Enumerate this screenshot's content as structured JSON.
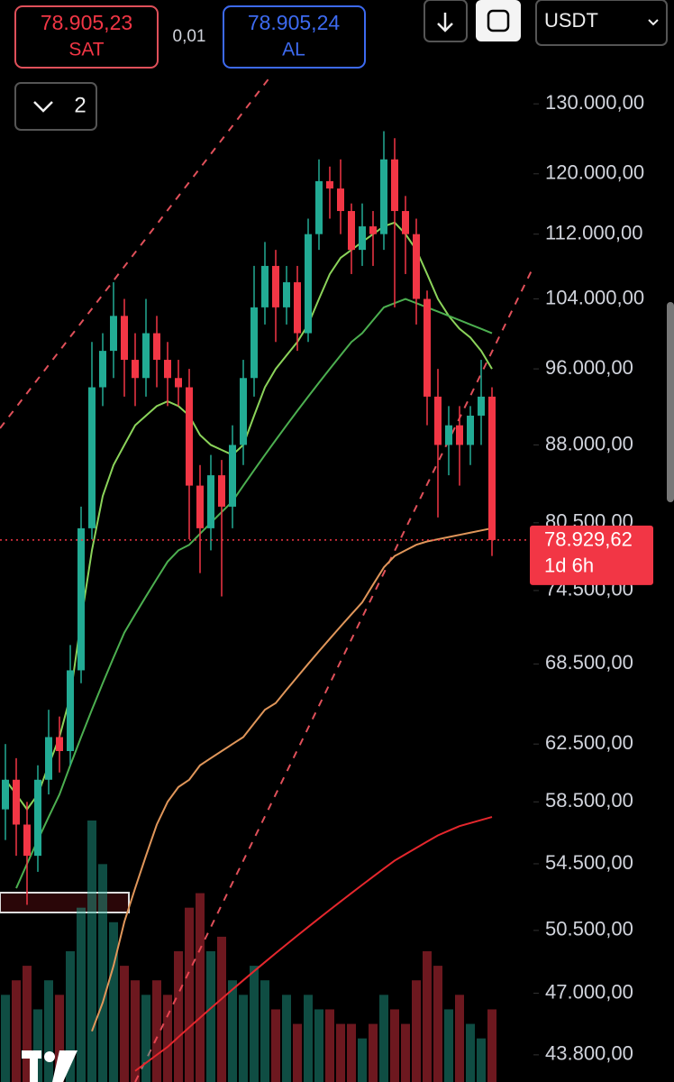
{
  "header": {
    "sell_price": "78.905,23",
    "sell_label": "SAT",
    "spread": "0,01",
    "buy_price": "78.905,24",
    "buy_label": "AL",
    "currency": "USDT",
    "indicators_count": "2"
  },
  "chart_data": {
    "type": "candlestick",
    "log_scale": true,
    "ylim": [
      42460,
      146400
    ],
    "yticks": [
      {
        "value": 130000,
        "label": "130.000,00"
      },
      {
        "value": 120000,
        "label": "120.000,00"
      },
      {
        "value": 112000,
        "label": "112.000,00"
      },
      {
        "value": 104000,
        "label": "104.000,00"
      },
      {
        "value": 96000,
        "label": "96.000,00"
      },
      {
        "value": 88000,
        "label": "88.000,00"
      },
      {
        "value": 80500,
        "label": "80.500,00"
      },
      {
        "value": 74500,
        "label": "74.500,00"
      },
      {
        "value": 68500,
        "label": "68.500,00"
      },
      {
        "value": 62500,
        "label": "62.500,00"
      },
      {
        "value": 58500,
        "label": "58.500,00"
      },
      {
        "value": 54500,
        "label": "54.500,00"
      },
      {
        "value": 50500,
        "label": "50.500,00"
      },
      {
        "value": 47000,
        "label": "47.000,00"
      },
      {
        "value": 43800,
        "label": "43.800,00"
      }
    ],
    "up_color": "#22ab94",
    "down_color": "#f23645",
    "open": [
      58000,
      60000,
      57000,
      55000,
      60000,
      63000,
      62000,
      68000,
      80000,
      94000,
      98000,
      102000,
      97000,
      95000,
      100000,
      97000,
      95000,
      94000,
      84000,
      80000,
      85000,
      82000,
      88000,
      95000,
      103000,
      108000,
      103000,
      106000,
      100000,
      112000,
      119000,
      118000,
      115000,
      110000,
      113000,
      112000,
      122000,
      115000,
      112000,
      104000,
      93000,
      88000,
      90000,
      88000,
      91000,
      93000
    ],
    "high": [
      62500,
      61500,
      58500,
      61000,
      65000,
      64500,
      70000,
      82000,
      99000,
      100000,
      106000,
      104000,
      100000,
      104000,
      102000,
      99000,
      97000,
      96000,
      86000,
      87000,
      86500,
      90000,
      97000,
      108000,
      111000,
      110000,
      108000,
      108000,
      114000,
      122000,
      121000,
      122000,
      116000,
      116000,
      115000,
      126000,
      125000,
      117000,
      114000,
      105000,
      96000,
      92000,
      92000,
      92000,
      97000,
      94000
    ],
    "low": [
      56000,
      55000,
      52000,
      54000,
      59000,
      60500,
      61000,
      67000,
      79000,
      92000,
      95000,
      93000,
      92000,
      93000,
      94000,
      92000,
      92000,
      79000,
      76000,
      78000,
      74000,
      80000,
      86000,
      93000,
      101000,
      99000,
      101000,
      98000,
      99000,
      110000,
      114000,
      112000,
      107000,
      108000,
      108000,
      110000,
      103000,
      107000,
      101000,
      90000,
      81000,
      85000,
      84000,
      86000,
      88000,
      77500
    ],
    "close": [
      60000,
      57000,
      55000,
      60000,
      63000,
      62000,
      68000,
      80000,
      94000,
      98000,
      102000,
      97000,
      95000,
      100000,
      97000,
      95000,
      94000,
      84000,
      80000,
      85000,
      82000,
      88000,
      95000,
      103000,
      108000,
      103000,
      106000,
      100000,
      112000,
      119000,
      118000,
      115000,
      110000,
      113000,
      112000,
      122000,
      115000,
      112000,
      104000,
      93000,
      88000,
      90000,
      88000,
      91000,
      93000,
      78929.62
    ],
    "volume": [
      30,
      35,
      40,
      25,
      35,
      30,
      45,
      60,
      90,
      75,
      55,
      40,
      35,
      30,
      35,
      30,
      45,
      60,
      65,
      45,
      50,
      35,
      30,
      40,
      35,
      25,
      30,
      20,
      30,
      25,
      25,
      20,
      20,
      15,
      20,
      30,
      25,
      20,
      35,
      45,
      40,
      25,
      30,
      20,
      15,
      25
    ],
    "series": [
      {
        "color": "#8bd35a",
        "values": [
          60000,
          59000,
          58000,
          59000,
          61000,
          63000,
          66000,
          72000,
          78000,
          83000,
          86000,
          88000,
          90000,
          91000,
          92000,
          92500,
          92000,
          91000,
          89000,
          88000,
          87500,
          87000,
          88000,
          91000,
          94000,
          96000,
          97500,
          99000,
          101000,
          104000,
          107000,
          109000,
          110000,
          111000,
          112000,
          113000,
          113500,
          112000,
          110000,
          107000,
          104000,
          102000,
          100500,
          99500,
          98000,
          96000
        ]
      },
      {
        "color": "#4caf50",
        "values": [
          null,
          53000,
          54500,
          56000,
          57500,
          59000,
          61000,
          63000,
          65000,
          67000,
          69000,
          71000,
          72500,
          74000,
          75500,
          77000,
          78000,
          78500,
          79500,
          80500,
          81500,
          82500,
          84000,
          85500,
          87000,
          88500,
          90000,
          91500,
          93000,
          94500,
          96000,
          97500,
          99000,
          100000,
          101500,
          103000,
          103500,
          104000,
          103500,
          103000,
          102500,
          102000,
          101500,
          101000,
          100500,
          100000
        ]
      },
      {
        "color": "#e0965a",
        "values": [
          null,
          null,
          null,
          null,
          null,
          null,
          null,
          null,
          45000,
          46500,
          48500,
          51000,
          53000,
          55000,
          57000,
          58500,
          59500,
          60000,
          61000,
          61500,
          62000,
          62500,
          63000,
          64000,
          65000,
          65500,
          66500,
          67500,
          68500,
          69500,
          70500,
          71500,
          72500,
          73500,
          75000,
          76500,
          77500,
          78000,
          78500,
          78800,
          79000,
          79200,
          79400,
          79600,
          79800,
          80000
        ]
      },
      {
        "color": "#e5272d",
        "values": [
          null,
          null,
          null,
          null,
          null,
          null,
          null,
          null,
          null,
          null,
          null,
          null,
          43000,
          43400,
          43800,
          44200,
          44700,
          45200,
          45700,
          46200,
          46700,
          47200,
          47700,
          48200,
          48700,
          49200,
          49700,
          50200,
          50700,
          51200,
          51700,
          52200,
          52700,
          53200,
          53700,
          54200,
          54700,
          55100,
          55500,
          55900,
          56300,
          56600,
          56900,
          57100,
          57300,
          57500
        ]
      }
    ],
    "last_price": {
      "value": 78929.62,
      "label": "78.929,62"
    },
    "countdown": "1d 6h"
  }
}
